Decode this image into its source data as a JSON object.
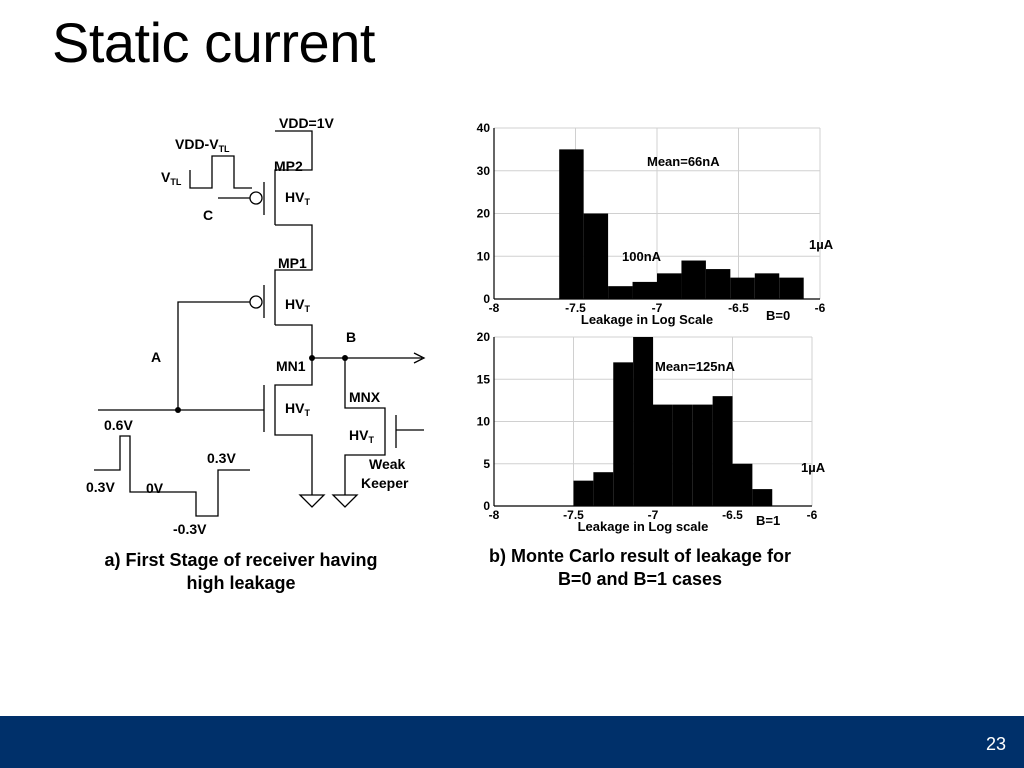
{
  "slide": {
    "title": "Static current",
    "page_number": "23",
    "footer_color": "#00306a"
  },
  "circuit": {
    "vdd": "VDD=1V",
    "vdd_vtl": "VDD-V",
    "vdd_vtl_sub": "TL",
    "vtl": "V",
    "vtl_sub": "TL",
    "node_c": "C",
    "mp2": "MP2",
    "mp1": "MP1",
    "mn1": "MN1",
    "mnx": "MNX",
    "hvt": "HV",
    "hvt_sub": "T",
    "node_a": "A",
    "node_b": "B",
    "v06": "0.6V",
    "v03_left": "0.3V",
    "v0": "0V",
    "v03_right": "0.3V",
    "vneg03": "-0.3V",
    "weak_keeper_line1": "Weak",
    "weak_keeper_line2": "Keeper",
    "caption_line1": "a) First Stage of receiver having",
    "caption_line2": "high leakage"
  },
  "histograms": {
    "caption_line1": "b) Monte Carlo result of leakage for",
    "caption_line2": "B=0 and B=1 cases"
  },
  "chart_data": [
    {
      "type": "bar",
      "xlabel": "Leakage in Log Scale",
      "xlim": [
        -8,
        -6
      ],
      "ylim": [
        0,
        40
      ],
      "xticks": [
        "-8",
        "-7.5",
        "-7",
        "-6.5",
        "-6"
      ],
      "yticks": [
        "0",
        "10",
        "20",
        "30",
        "40"
      ],
      "grid": true,
      "bin_edges": [
        -7.6,
        -7.45,
        -7.3,
        -7.15,
        -7.0,
        -6.85,
        -6.7,
        -6.55,
        -6.4,
        -6.25,
        -6.1
      ],
      "values": [
        35,
        20,
        3,
        4,
        6,
        9,
        7,
        5,
        6,
        5
      ],
      "annotations": {
        "mean": "Mean=66nA",
        "low": "100nA",
        "high": "1µA",
        "case": "B=0"
      }
    },
    {
      "type": "bar",
      "xlabel": "Leakage in Log scale",
      "xlim": [
        -8,
        -6
      ],
      "ylim": [
        0,
        20
      ],
      "xticks": [
        "-8",
        "-7.5",
        "-7",
        "-6.5",
        "-6"
      ],
      "yticks": [
        "0",
        "5",
        "10",
        "15",
        "20"
      ],
      "grid": true,
      "bin_edges": [
        -7.5,
        -7.375,
        -7.25,
        -7.125,
        -7.0,
        -6.875,
        -6.75,
        -6.625,
        -6.5,
        -6.375,
        -6.25
      ],
      "values": [
        3,
        4,
        17,
        20,
        12,
        12,
        12,
        13,
        5,
        2
      ],
      "annotations": {
        "mean": "Mean=125nA",
        "high": "1µA",
        "case": "B=1"
      }
    }
  ]
}
